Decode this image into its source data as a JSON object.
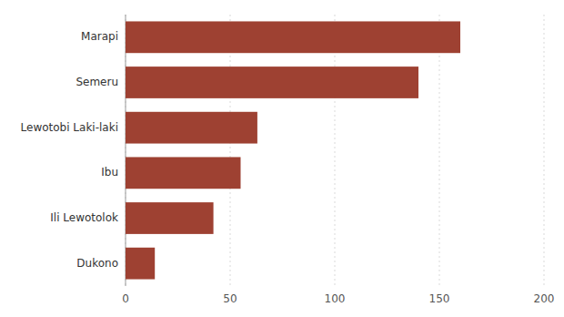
{
  "chart_data": {
    "type": "bar",
    "orientation": "horizontal",
    "categories": [
      "Dukono",
      "Ili Lewotolok",
      "Ibu",
      "Lewotobi Laki-laki",
      "Semeru",
      "Marapi"
    ],
    "values": [
      14,
      42,
      55,
      63,
      140,
      160
    ],
    "color": "#9e4132",
    "xlim": [
      0,
      200
    ],
    "xticks": [
      0,
      50,
      100,
      150,
      200
    ],
    "grid": true
  }
}
